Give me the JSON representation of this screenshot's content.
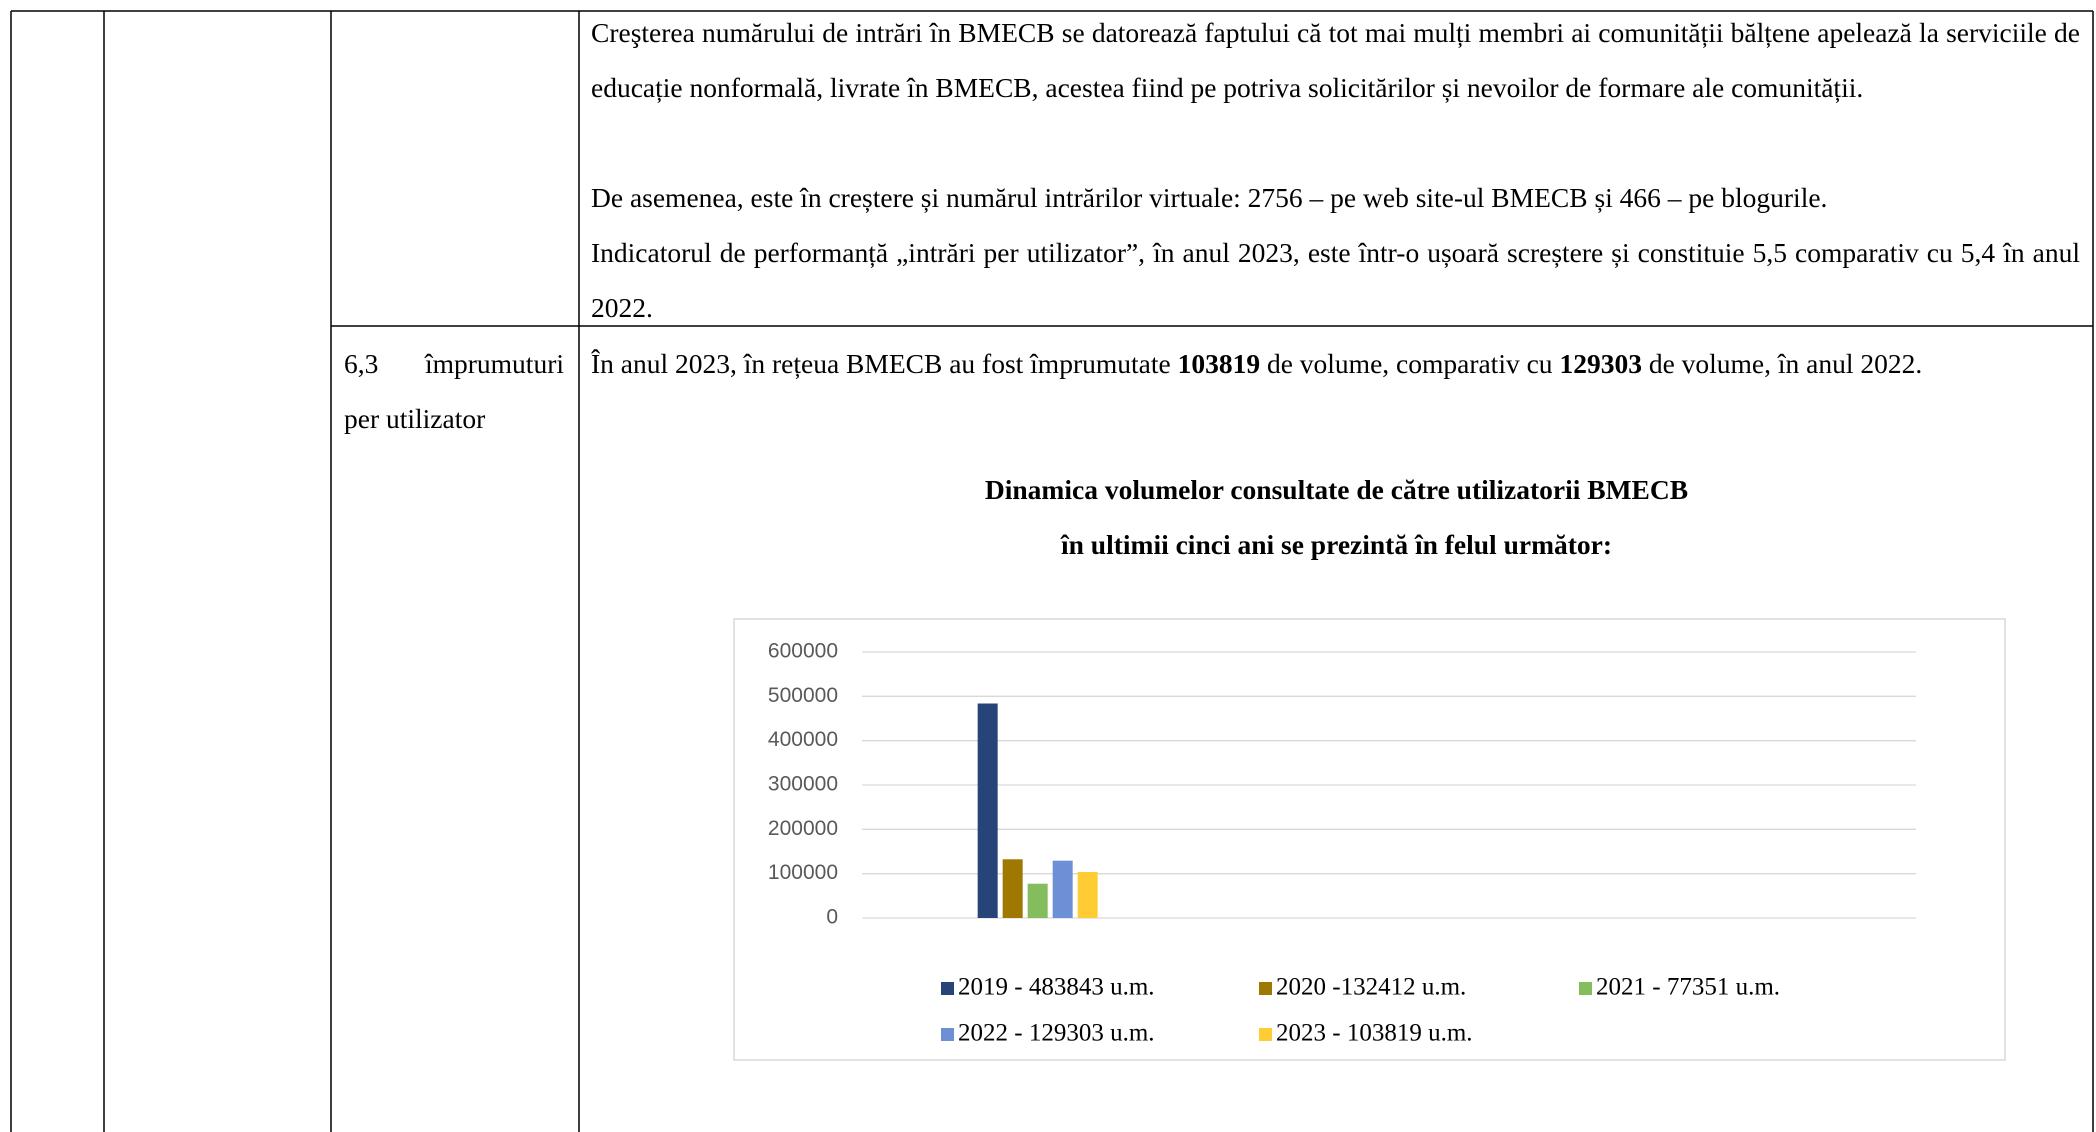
{
  "table": {
    "rows": [
      {
        "cells": [
          {
            "paragraphs": [
              "Creşterea numărului de intrări în BMECB se datorează faptului că tot mai mulți membri ai comunității bălțene apelează la serviciile de educație nonformală, livrate în BMECB, acestea fiind pe potriva solicitărilor și nevoilor de formare ale comunității.",
              "De asemenea, este în creștere și numărul intrărilor virtuale: 2756 – pe web site-ul BMECB și 466 – pe blogurile.",
              "Indicatorul de performanță „intrări per utilizator”, în anul 2023, este într-o ușoară screștere și constituie 5,5 comparativ cu 5,4 în anul 2022."
            ]
          }
        ]
      },
      {
        "cells": [
          {
            "text": "6,3 împrumuturi per utilizator"
          },
          {
            "parts": [
              "În anul 2023, în rețeua BMECB au fost împrumutate ",
              "103819",
              " de volume, comparativ cu ",
              "129303",
              " de volume, în anul 2022."
            ]
          }
        ]
      }
    ]
  },
  "chart_data": {
    "type": "bar",
    "title": "Dinamica volumelor consultate de către utilizatorii BMECB",
    "subtitle": "în ultimii cinci ani se prezintă în felul următor:",
    "categories": [
      null,
      null,
      null
    ],
    "series": [
      {
        "name": "2019 - 483843 u.m.",
        "color": "#264478",
        "values": [
          483843,
          null,
          null
        ]
      },
      {
        "name": "2020 -132412 u.m.",
        "color": "#9e7800",
        "values": [
          132412,
          null,
          null
        ]
      },
      {
        "name": "2021 - 77351 u.m.",
        "color": "#84bd5e",
        "values": [
          77351,
          null,
          null
        ]
      },
      {
        "name": "2022 - 129303 u.m.",
        "color": "#6d8fd6",
        "values": [
          129303,
          null,
          null
        ]
      },
      {
        "name": "2023 - 103819 u.m.",
        "color": "#ffcd33",
        "values": [
          103819,
          null,
          null
        ]
      }
    ],
    "ylim": [
      0,
      600000
    ],
    "yticks": [
      0,
      100000,
      200000,
      300000,
      400000,
      500000,
      600000
    ],
    "grid": true,
    "legend": "bottom"
  }
}
